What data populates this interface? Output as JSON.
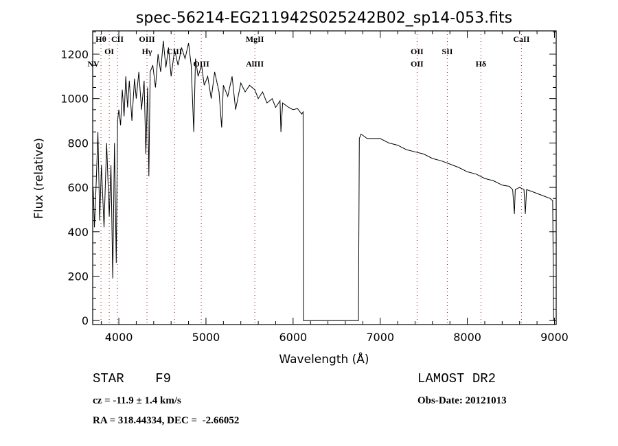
{
  "chart_data": {
    "type": "line",
    "title": "spec-56214-EG211942S025242B02_sp14-053.fits",
    "xlabel": "Wavelength (Å)",
    "ylabel": "Flux (relative)",
    "xlim": [
      3700,
      9020
    ],
    "ylim": [
      -18,
      1305
    ],
    "xticks": [
      4000,
      5000,
      6000,
      7000,
      8000,
      9000
    ],
    "xtick_labels": [
      "4000",
      "5000",
      "6000",
      "7000",
      "8000",
      "9000"
    ],
    "yticks": [
      0,
      200,
      400,
      600,
      800,
      1000,
      1200
    ],
    "ytick_labels": [
      "0",
      "200",
      "400",
      "600",
      "800",
      "1000",
      "1200"
    ],
    "grid": false,
    "series": [
      {
        "name": "spectrum",
        "x": [
          3705,
          3710,
          3720,
          3740,
          3760,
          3780,
          3800,
          3830,
          3860,
          3890,
          3910,
          3930,
          3950,
          3970,
          3985,
          4000,
          4020,
          4040,
          4060,
          4080,
          4100,
          4120,
          4150,
          4180,
          4200,
          4230,
          4260,
          4290,
          4310,
          4330,
          4345,
          4360,
          4390,
          4420,
          4450,
          4480,
          4510,
          4540,
          4570,
          4600,
          4640,
          4680,
          4720,
          4760,
          4800,
          4830,
          4860,
          4880,
          4910,
          4950,
          4980,
          5020,
          5060,
          5100,
          5150,
          5180,
          5200,
          5250,
          5300,
          5340,
          5400,
          5450,
          5500,
          5560,
          5600,
          5650,
          5700,
          5760,
          5800,
          5850,
          5860,
          5880,
          5950,
          6000,
          6050,
          6100,
          6115,
          6120,
          6750,
          6760,
          6780,
          6850,
          7000,
          7100,
          7200,
          7300,
          7400,
          7500,
          7600,
          7700,
          7800,
          7900,
          8000,
          8100,
          8200,
          8300,
          8400,
          8480,
          8520,
          8540,
          8550,
          8600,
          8650,
          8665,
          8680,
          8750,
          8850,
          8950,
          8980,
          8990
        ],
        "y": [
          600,
          550,
          420,
          620,
          850,
          450,
          700,
          420,
          800,
          470,
          700,
          190,
          800,
          260,
          900,
          950,
          880,
          1040,
          920,
          1100,
          960,
          1080,
          900,
          1090,
          1000,
          1120,
          950,
          1080,
          750,
          1050,
          650,
          1120,
          1150,
          1050,
          1200,
          1120,
          1260,
          1140,
          1230,
          1100,
          1220,
          1150,
          1230,
          1180,
          1250,
          1150,
          850,
          1180,
          1100,
          1150,
          1060,
          1100,
          1000,
          1120,
          1030,
          870,
          1060,
          1010,
          1100,
          950,
          1070,
          1030,
          1060,
          1040,
          1000,
          1030,
          980,
          1000,
          960,
          990,
          850,
          980,
          960,
          950,
          955,
          930,
          940,
          0,
          0,
          820,
          840,
          820,
          820,
          800,
          790,
          770,
          760,
          750,
          730,
          720,
          705,
          690,
          670,
          660,
          640,
          630,
          610,
          605,
          590,
          480,
          590,
          600,
          590,
          480,
          590,
          580,
          565,
          550,
          540,
          0
        ]
      }
    ],
    "line_labels": [
      {
        "name": "Hθ",
        "wavelength": 3795
      },
      {
        "name": "CII",
        "wavelength": 3984
      },
      {
        "name": "OIII",
        "wavelength": 4323
      },
      {
        "name": "MgII",
        "wavelength": 5561
      },
      {
        "name": "OI",
        "wavelength": 3890
      },
      {
        "name": "Hγ",
        "wavelength": 4323
      },
      {
        "name": "CIII",
        "wavelength": 4639
      },
      {
        "name": "NV",
        "wavelength": 3708
      },
      {
        "name": "OIII",
        "wavelength": 4946
      },
      {
        "name": "AlIII",
        "wavelength": 5561
      },
      {
        "name": "OII",
        "wavelength": 7423
      },
      {
        "name": "SII",
        "wavelength": 7770
      },
      {
        "name": "OII",
        "wavelength": 7423
      },
      {
        "name": "Hδ",
        "wavelength": 8156
      },
      {
        "name": "CaII",
        "wavelength": 8621
      }
    ],
    "line_color": "#000000",
    "marker_line_color": "#8b1a1a"
  },
  "info": {
    "class": "STAR    F9",
    "survey": "LAMOST DR2",
    "cz": "cz = -11.9 ± 1.4 km/s",
    "obs_date": "Obs-Date: 20121013",
    "coords": "RA = 318.44334, DEC =  -2.66052"
  }
}
